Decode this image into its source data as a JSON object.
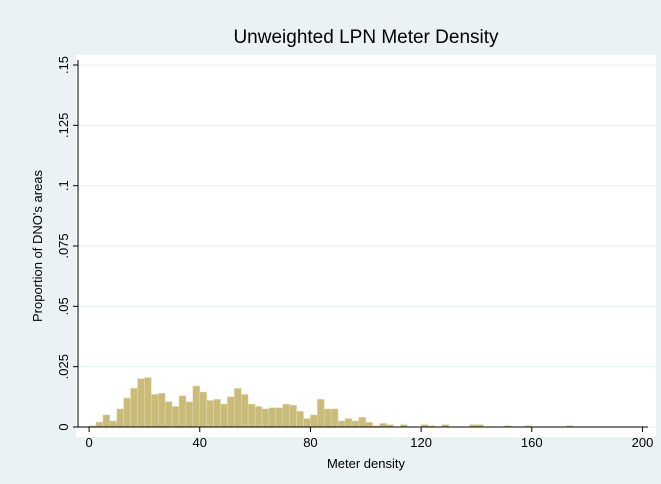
{
  "chart_data": {
    "type": "histogram",
    "title": "Unweighted LPN Meter Density",
    "x_label": "Meter density",
    "y_label": "Proportion of DNO's areas",
    "color": "#c9bb78",
    "bins": [
      0,
      2.5,
      5,
      7.5,
      10,
      12.5,
      15,
      17.5,
      20,
      22.5,
      25,
      27.5,
      30,
      32.5,
      35,
      37.5,
      40,
      42.5,
      45,
      47.5,
      50,
      52.5,
      55,
      57.5,
      60,
      62.5,
      65,
      67.5,
      70,
      72.5,
      75,
      77.5,
      80,
      82.5,
      85,
      87.5,
      90,
      92.5,
      95,
      97.5,
      100,
      102.5,
      105,
      107.5,
      110,
      112.5,
      115,
      117.5,
      120,
      122.5,
      125,
      127.5,
      130,
      132.5,
      135,
      137.5,
      140,
      142.5,
      145,
      147.5,
      150,
      152.5,
      155,
      157.5,
      160,
      162.5,
      165,
      167.5,
      170,
      172.5,
      175,
      177.5,
      180,
      182.5,
      185,
      187.5,
      190,
      192.5,
      195,
      197.5,
      200
    ],
    "values": [
      0.0005,
      0.002,
      0.005,
      0.0025,
      0.0075,
      0.012,
      0.016,
      0.02,
      0.0205,
      0.0135,
      0.014,
      0.0105,
      0.0085,
      0.013,
      0.0105,
      0.017,
      0.0145,
      0.011,
      0.0115,
      0.0095,
      0.0125,
      0.016,
      0.0135,
      0.0095,
      0.0085,
      0.0075,
      0.008,
      0.008,
      0.0095,
      0.009,
      0.0065,
      0.0035,
      0.005,
      0.0115,
      0.0075,
      0.0075,
      0.0025,
      0.0035,
      0.0025,
      0.004,
      0.002,
      0.0005,
      0.0015,
      0.001,
      0,
      0.001,
      0,
      0,
      0.001,
      0.0005,
      0,
      0.001,
      0,
      0,
      0,
      0.001,
      0.001,
      0,
      0,
      0,
      0.0005,
      0,
      0,
      0.0005,
      0,
      0,
      0,
      0,
      0,
      0.0005,
      0,
      0,
      0,
      0,
      0,
      0,
      0,
      0,
      0,
      0
    ],
    "xlim": [
      -4,
      202
    ],
    "ylim": [
      0,
      0.15
    ],
    "xticks": [
      0,
      40,
      80,
      120,
      160,
      200
    ],
    "yticks": [
      0,
      {
        "value": 0.025,
        "label": ".025"
      },
      {
        "value": 0.05,
        "label": ".05"
      },
      {
        "value": 0.075,
        "label": ".075"
      },
      {
        "value": 0.1,
        "label": ".1"
      },
      {
        "value": 0.125,
        "label": ".125"
      },
      {
        "value": 0.15,
        "label": ".15"
      }
    ],
    "grid": true
  }
}
